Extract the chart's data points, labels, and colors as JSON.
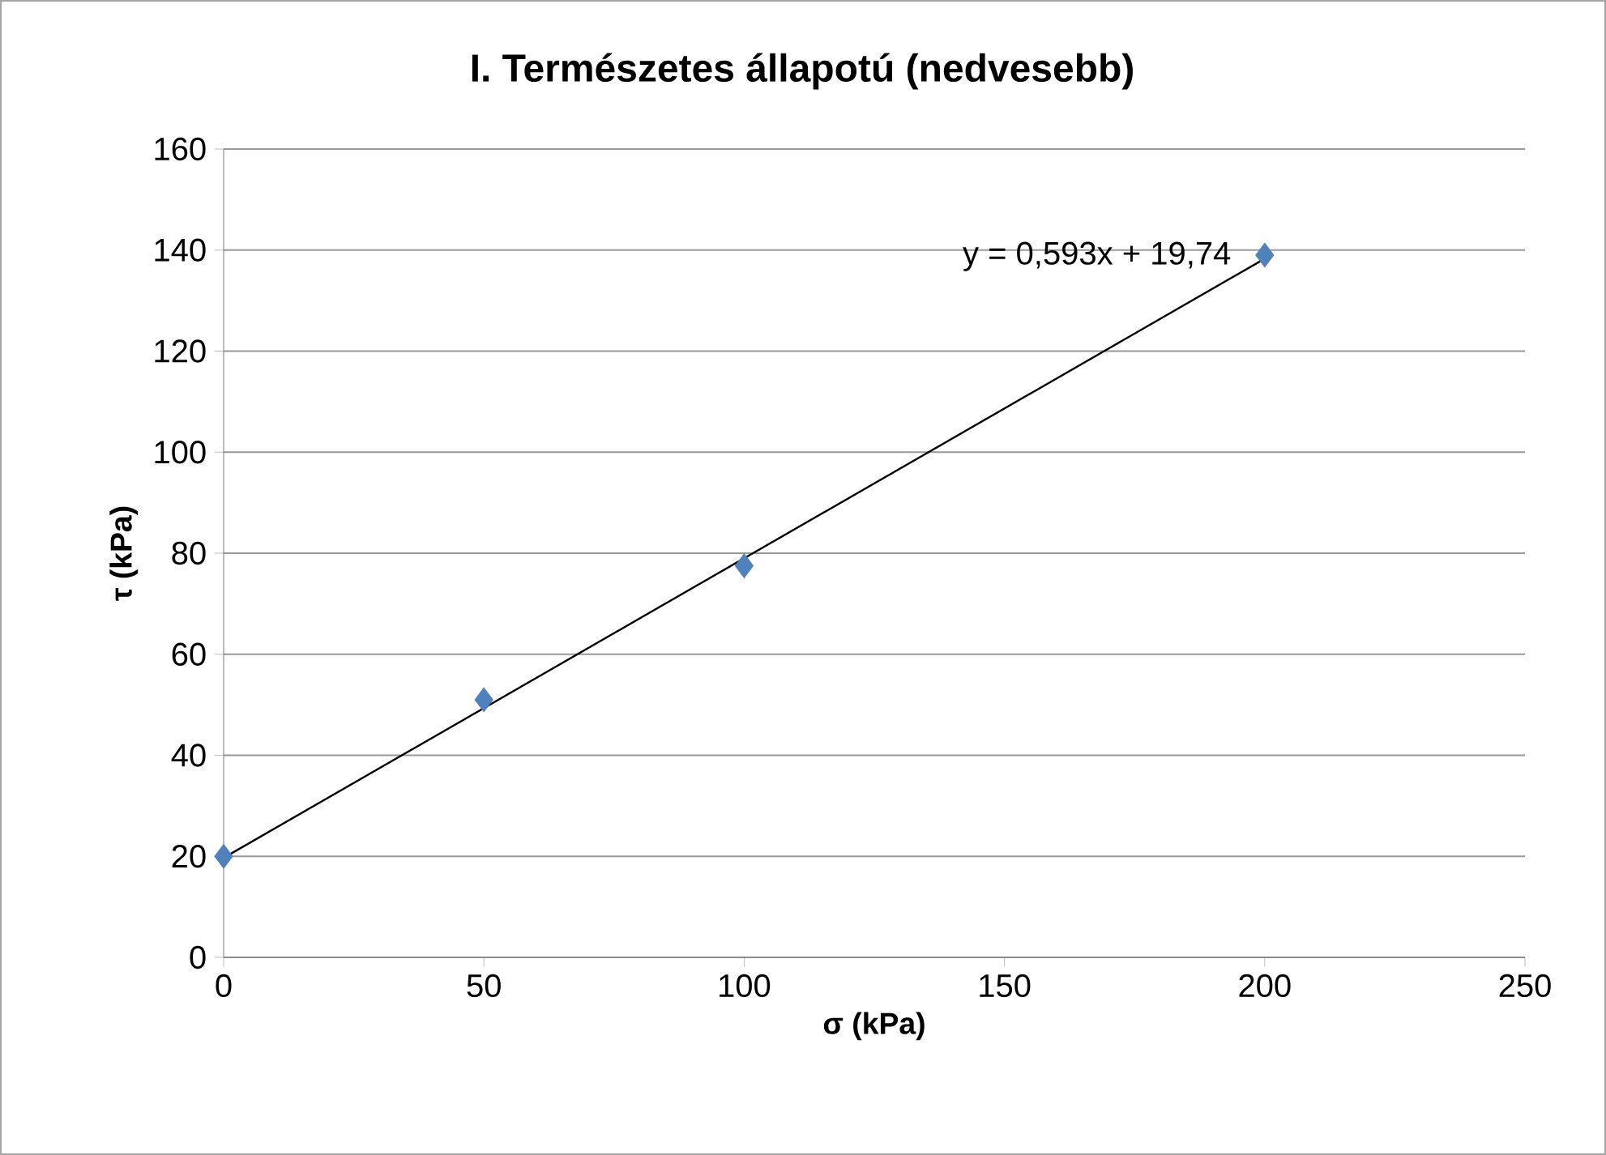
{
  "chart_data": {
    "type": "scatter",
    "title": "I. Természetes állapotú (nedvesebb)",
    "xlabel": "σ (kPa)",
    "ylabel": "τ (kPa)",
    "series": [
      {
        "type": "scatter",
        "color": "#4f81bd",
        "marker": "diamond",
        "x": [
          0,
          50,
          100,
          200
        ],
        "values": [
          20,
          51,
          77.5,
          139
        ]
      },
      {
        "type": "line",
        "color": "#000000",
        "marker": "none",
        "x": [
          0,
          200
        ],
        "values": [
          19.7,
          138.3
        ]
      }
    ],
    "annotations": [
      {
        "text": "y = 0,593x + 19,74",
        "x": 200,
        "y": 138.3
      }
    ],
    "xlim": [
      0,
      250
    ],
    "xticks": [
      0,
      50,
      100,
      150,
      200,
      250
    ],
    "ylim": [
      0,
      160
    ],
    "yticks": [
      0,
      20,
      40,
      60,
      80,
      100,
      120,
      140,
      160
    ],
    "grid": "y"
  }
}
